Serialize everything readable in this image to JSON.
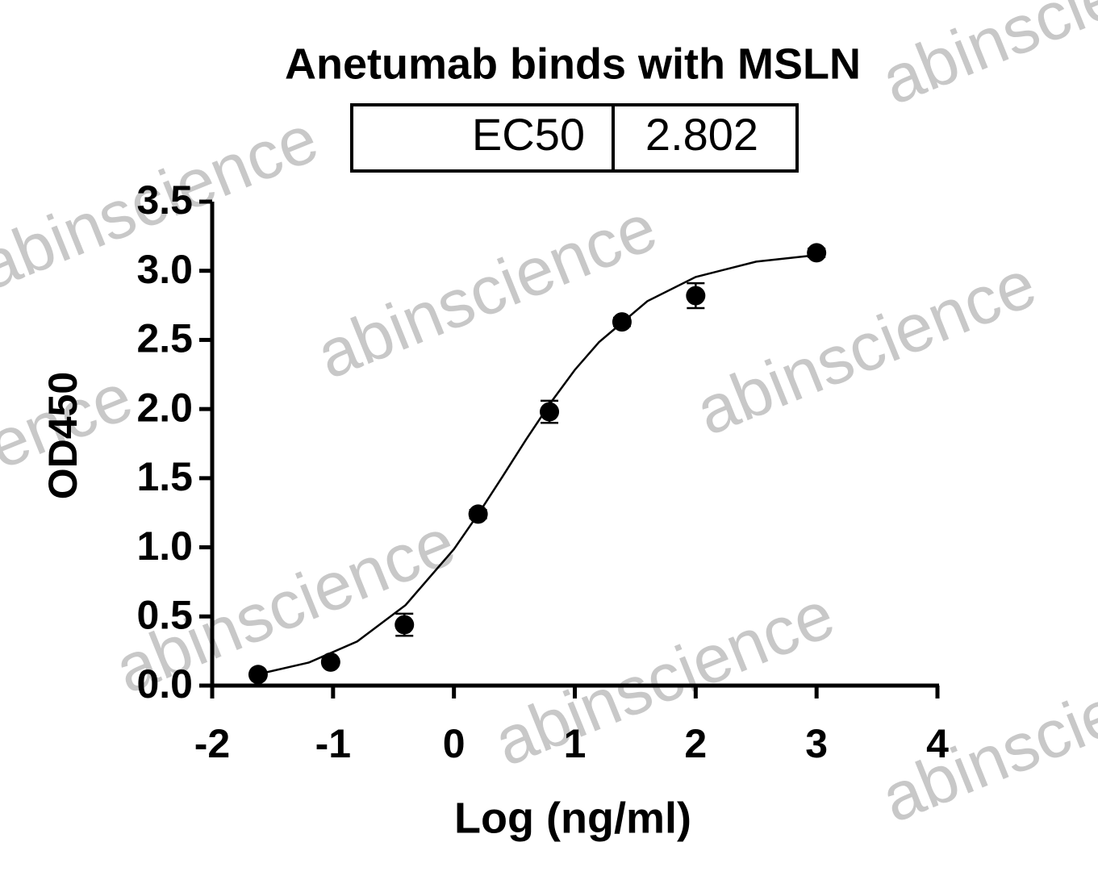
{
  "chart_data": {
    "type": "scatter",
    "title": "Anetumab  binds with MSLN",
    "table": {
      "label": "EC50",
      "value": "2.802"
    },
    "watermark": "abinscience",
    "x_label": "Log (ng/ml)",
    "y_label": "OD450",
    "series": [
      {
        "x": [
          -1.62,
          -1.02,
          -0.41,
          0.2,
          0.79,
          1.39,
          2.0,
          3.0
        ],
        "values": [
          0.08,
          0.17,
          0.44,
          1.24,
          1.98,
          2.63,
          2.82,
          3.13
        ],
        "errors": [
          0.02,
          0.02,
          0.08,
          0.03,
          0.08,
          0.03,
          0.09,
          0.03
        ],
        "color": "#000000"
      },
      {
        "x": [
          -1.62,
          -1.2,
          -0.8,
          -0.4,
          0,
          0.2,
          0.4,
          0.6,
          0.8,
          1.0,
          1.2,
          1.6,
          2.0,
          2.5,
          3.0
        ],
        "values": [
          0.082,
          0.167,
          0.319,
          0.582,
          0.987,
          1.239,
          1.509,
          1.784,
          2.045,
          2.283,
          2.484,
          2.78,
          2.955,
          3.066,
          3.114
        ],
        "color": "#000000"
      }
    ],
    "xlim": [
      -2,
      4
    ],
    "xticks": [
      -2,
      -1,
      0,
      1,
      2,
      3,
      4
    ],
    "ylim": [
      0,
      3.5
    ],
    "yticks": [
      {
        "value": 0,
        "label": "0.0"
      },
      0.5,
      {
        "value": 1,
        "label": "1.0"
      },
      1.5,
      {
        "value": 2,
        "label": "2.0"
      },
      2.5,
      {
        "value": 3,
        "label": "3.0"
      },
      3.5
    ]
  }
}
